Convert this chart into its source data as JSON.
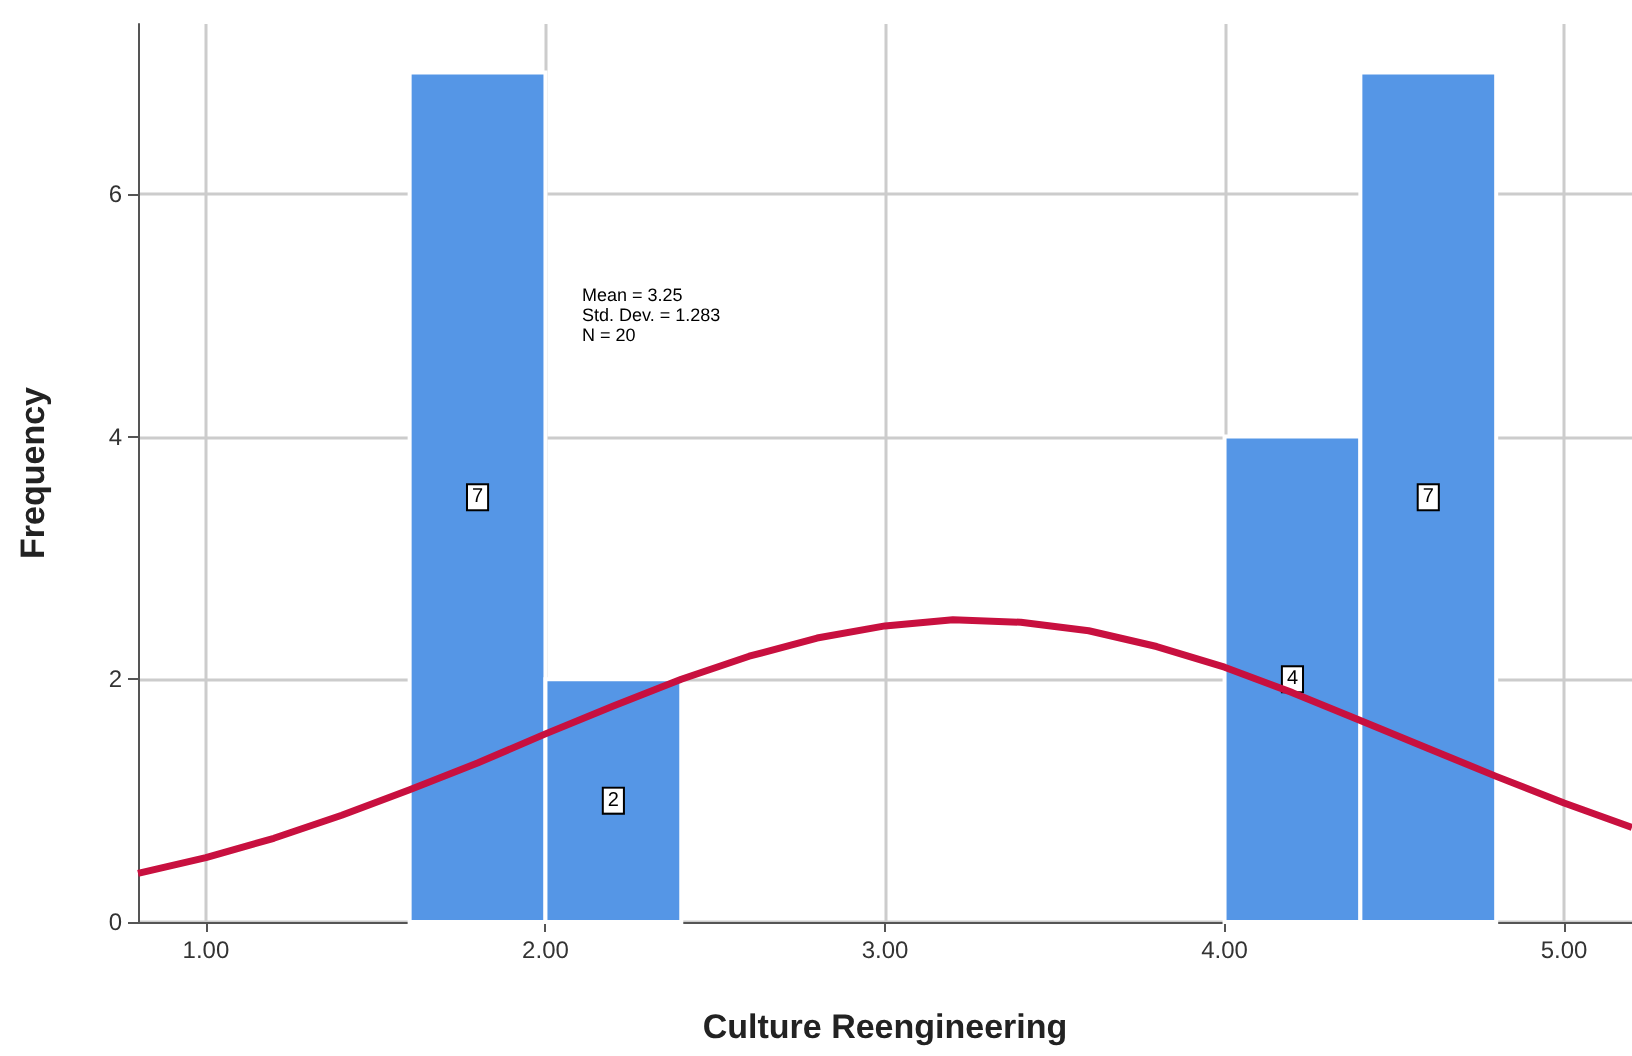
{
  "chart_data": {
    "type": "histogram",
    "xlabel": "Culture Reengineering",
    "ylabel": "Frequency",
    "bins": [
      1.6,
      2.0,
      2.4,
      2.8,
      3.2,
      3.6,
      4.0,
      4.4,
      4.8
    ],
    "values": [
      7,
      2,
      0,
      0,
      0,
      0,
      4,
      7
    ],
    "value_labels": [
      "7",
      "2",
      null,
      null,
      null,
      null,
      "4",
      "7"
    ],
    "color": "#5596e6",
    "series": [
      {
        "type": "line",
        "color": "#c8103f",
        "x": [
          0.8,
          1.0,
          1.2,
          1.4,
          1.6,
          1.8,
          2.0,
          2.2,
          2.4,
          2.6,
          2.8,
          3.0,
          3.2,
          3.4,
          3.6,
          3.8,
          4.0,
          4.2,
          4.4,
          4.6,
          4.8,
          5.0,
          5.2
        ],
        "values": [
          0.4,
          0.53,
          0.69,
          0.88,
          1.09,
          1.31,
          1.55,
          1.78,
          2.0,
          2.19,
          2.34,
          2.44,
          2.49,
          2.47,
          2.4,
          2.27,
          2.1,
          1.89,
          1.66,
          1.43,
          1.2,
          0.98,
          0.78
        ]
      }
    ],
    "annotations": [
      "Mean = 3.25",
      "Std. Dev. = 1.283",
      "N = 20"
    ],
    "xlim": [
      0.8,
      5.2
    ],
    "ylim": [
      0,
      7.4
    ],
    "xticks": [
      {
        "value": 1,
        "label": "1.00"
      },
      {
        "value": 2,
        "label": "2.00"
      },
      {
        "value": 3,
        "label": "3.00"
      },
      {
        "value": 4,
        "label": "4.00"
      },
      {
        "value": 5,
        "label": "5.00"
      }
    ],
    "yticks": [
      0,
      2,
      4,
      6
    ],
    "grid": true
  }
}
